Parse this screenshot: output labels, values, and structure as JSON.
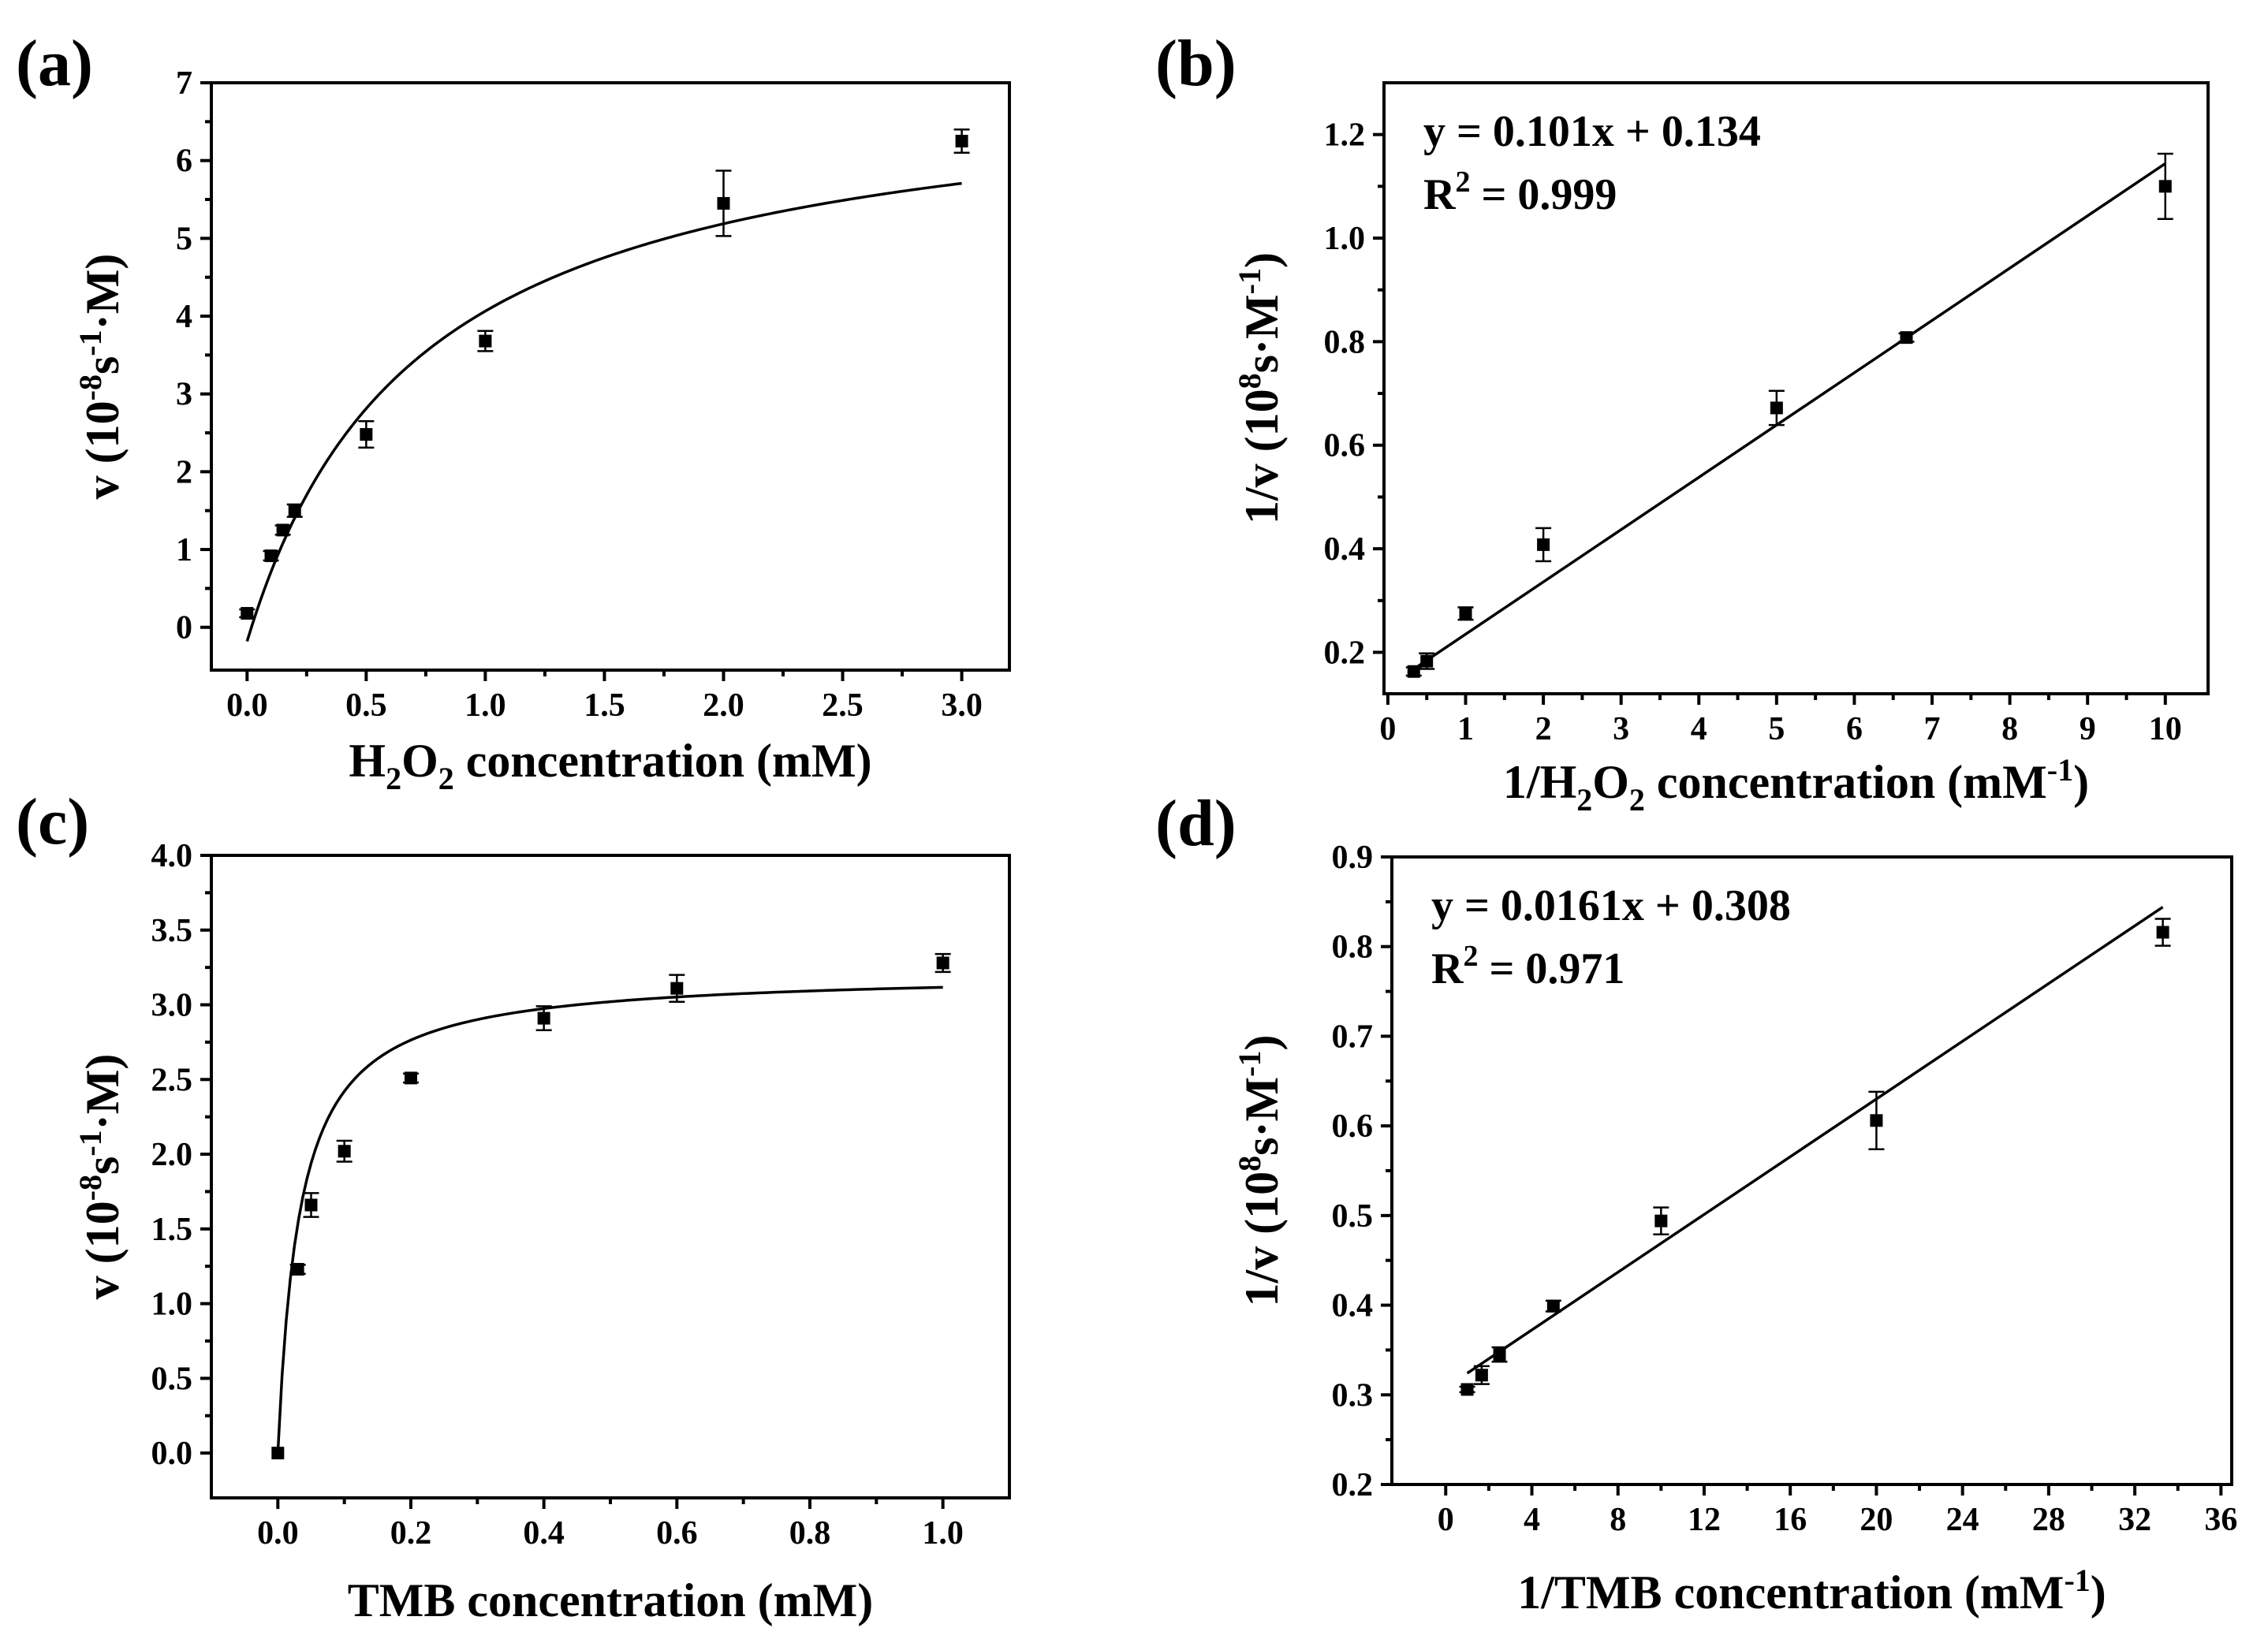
{
  "chart_data": [
    {
      "id": "a",
      "panel_label": "(a)",
      "type": "scatter",
      "fit": "michaelis-menten",
      "xlabel_parts": [
        "H",
        "2",
        "O",
        "2",
        " concentration (mM)"
      ],
      "ylabel_parts": [
        "v (10",
        "-8",
        "s",
        "-1",
        "·M)"
      ],
      "xlim": [
        -0.15,
        3.2
      ],
      "ylim": [
        -0.55,
        7
      ],
      "xticks": [
        0,
        0.5,
        1,
        1.5,
        2,
        2.5,
        3
      ],
      "xtick_labels": [
        "0.0",
        "0.5",
        "1.0",
        "1.5",
        "2.0",
        "2.5",
        "3.0"
      ],
      "yticks": [
        0,
        1,
        2,
        3,
        4,
        5,
        6,
        7
      ],
      "ytick_labels": [
        "0",
        "1",
        "2",
        "3",
        "4",
        "5",
        "6",
        "7"
      ],
      "x": [
        0,
        0.1,
        0.15,
        0.2,
        0.5,
        1.0,
        2.0,
        3.0
      ],
      "y": [
        0.18,
        0.92,
        1.25,
        1.5,
        2.48,
        3.68,
        5.45,
        6.25
      ],
      "err": [
        0.05,
        0.06,
        0.06,
        0.08,
        0.17,
        0.13,
        0.42,
        0.15
      ],
      "fit_params": {
        "vmax": 7.3,
        "km": 0.72,
        "y0": -0.18
      },
      "fit_range": [
        0.0,
        3.0
      ]
    },
    {
      "id": "b",
      "panel_label": "(b)",
      "type": "scatter",
      "fit": "linear",
      "xlabel_parts": [
        "1/H",
        "2",
        "O",
        "2",
        " concentration (mM",
        "-1",
        ")"
      ],
      "ylabel_parts": [
        "1/v (10",
        "8",
        "s·M",
        "-1",
        ")"
      ],
      "annotation": {
        "equation": "y = 0.101x + 0.134",
        "r2_label": "R",
        "r2_sup": "2",
        "r2_value": " = 0.999"
      },
      "xlim": [
        -0.05,
        10.55
      ],
      "ylim": [
        0.12,
        1.3
      ],
      "xticks": [
        0,
        1,
        2,
        3,
        4,
        5,
        6,
        7,
        8,
        9,
        10
      ],
      "xtick_labels": [
        "0",
        "1",
        "2",
        "3",
        "4",
        "5",
        "6",
        "7",
        "8",
        "9",
        "10"
      ],
      "yticks": [
        0.2,
        0.4,
        0.6,
        0.8,
        1.0,
        1.2
      ],
      "ytick_labels": [
        "0.2",
        "0.4",
        "0.6",
        "0.8",
        "1.0",
        "1.2"
      ],
      "x": [
        0.333,
        0.5,
        1,
        2,
        5,
        6.67,
        10
      ],
      "y": [
        0.163,
        0.183,
        0.275,
        0.408,
        0.672,
        0.808,
        1.1
      ],
      "err": [
        0.008,
        0.015,
        0.012,
        0.032,
        0.033,
        0.008,
        0.063
      ],
      "fit_params": {
        "slope": 0.101,
        "intercept": 0.134
      },
      "fit_range": [
        0.333,
        10
      ]
    },
    {
      "id": "c",
      "panel_label": "(c)",
      "type": "scatter",
      "fit": "michaelis-menten",
      "xlabel_parts": [
        "TMB concentration (mM)"
      ],
      "ylabel_parts": [
        "v (10",
        "-8",
        "s",
        "-1",
        "·M)"
      ],
      "xlim": [
        -0.1,
        1.1
      ],
      "ylim": [
        -0.3,
        4.0
      ],
      "xticks": [
        0,
        0.2,
        0.4,
        0.6,
        0.8,
        1.0
      ],
      "xtick_labels": [
        "0.0",
        "0.2",
        "0.4",
        "0.6",
        "0.8",
        "1.0"
      ],
      "yticks": [
        0,
        0.5,
        1.0,
        1.5,
        2.0,
        2.5,
        3.0,
        3.5,
        4.0
      ],
      "ytick_labels": [
        "0.0",
        "0.5",
        "1.0",
        "1.5",
        "2.0",
        "2.5",
        "3.0",
        "3.5",
        "4.0"
      ],
      "x": [
        0,
        0.03,
        0.05,
        0.1,
        0.2,
        0.4,
        0.6,
        1.0
      ],
      "y": [
        0.0,
        1.23,
        1.66,
        2.02,
        2.51,
        2.91,
        3.11,
        3.28
      ],
      "err": [
        0.0,
        0.03,
        0.08,
        0.07,
        0.03,
        0.08,
        0.09,
        0.06
      ],
      "fit_params": {
        "vmax": 3.22,
        "km": 0.033,
        "y0": 0
      },
      "fit_range": [
        0.0,
        1.0
      ]
    },
    {
      "id": "d",
      "panel_label": "(d)",
      "type": "scatter",
      "fit": "linear",
      "xlabel_parts": [
        "1/TMB concentration (mM",
        "-1",
        ")"
      ],
      "ylabel_parts": [
        "1/v (10",
        "8",
        "s·M",
        "-1",
        ")"
      ],
      "annotation": {
        "equation": "y = 0.0161x + 0.308",
        "r2_label": "R",
        "r2_sup": "2",
        "r2_value": " = 0.971"
      },
      "xlim": [
        -2.5,
        36.5
      ],
      "ylim": [
        0.2,
        0.9
      ],
      "xticks": [
        0,
        4,
        8,
        12,
        16,
        20,
        24,
        28,
        32,
        36
      ],
      "xtick_labels": [
        "0",
        "4",
        "8",
        "12",
        "16",
        "20",
        "24",
        "28",
        "32",
        "36"
      ],
      "yticks": [
        0.2,
        0.3,
        0.4,
        0.5,
        0.6,
        0.7,
        0.8,
        0.9
      ],
      "ytick_labels": [
        "0.2",
        "0.3",
        "0.4",
        "0.5",
        "0.6",
        "0.7",
        "0.8",
        "0.9"
      ],
      "x": [
        1,
        1.67,
        2.5,
        5,
        10,
        20,
        33.3
      ],
      "y": [
        0.306,
        0.322,
        0.345,
        0.399,
        0.494,
        0.606,
        0.816
      ],
      "err": [
        0.003,
        0.01,
        0.008,
        0.006,
        0.015,
        0.032,
        0.015
      ],
      "fit_params": {
        "slope": 0.0161,
        "intercept": 0.308
      },
      "fit_range": [
        1,
        33.3
      ]
    }
  ]
}
